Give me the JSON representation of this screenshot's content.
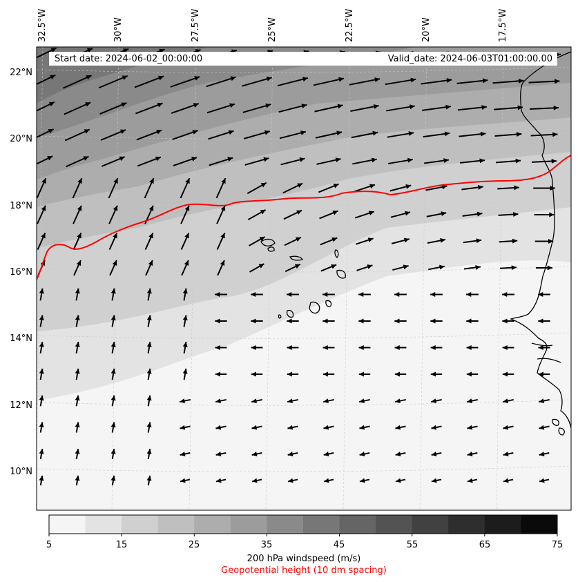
{
  "map": {
    "lat_labels": [
      "22°N",
      "20°N",
      "18°N",
      "16°N",
      "14°N",
      "12°N",
      "10°N"
    ],
    "lon_labels": [
      "32.5°W",
      "30°W",
      "27.5°W",
      "25°W",
      "22.5°W",
      "20°W",
      "17.5°W"
    ],
    "start_date": "Start date: 2024-06-02_00:00:00",
    "valid_date": "Valid_date: 2024-06-03T01:00:00.00",
    "geopotential_color": "#ff0000",
    "coastline_color": "#000000",
    "arrow_color": "#000000"
  },
  "colorbar": {
    "ticks": [
      "5",
      "15",
      "25",
      "35",
      "45",
      "55",
      "65",
      "75"
    ],
    "levels": [
      5,
      10,
      15,
      20,
      25,
      30,
      35,
      40,
      45,
      50,
      55,
      60,
      65,
      70,
      75
    ],
    "colors": [
      "#f5f5f5",
      "#e3e3e3",
      "#d0d0d0",
      "#bfbfbf",
      "#adadad",
      "#9c9c9c",
      "#8a8a8a",
      "#777777",
      "#656565",
      "#535353",
      "#414141",
      "#2e2e2e",
      "#1c1c1c",
      "#0a0a0a"
    ],
    "label": "200 hPa windspeed (m/s)",
    "geo_label": "Geopotential height (10 dm spacing)"
  }
}
